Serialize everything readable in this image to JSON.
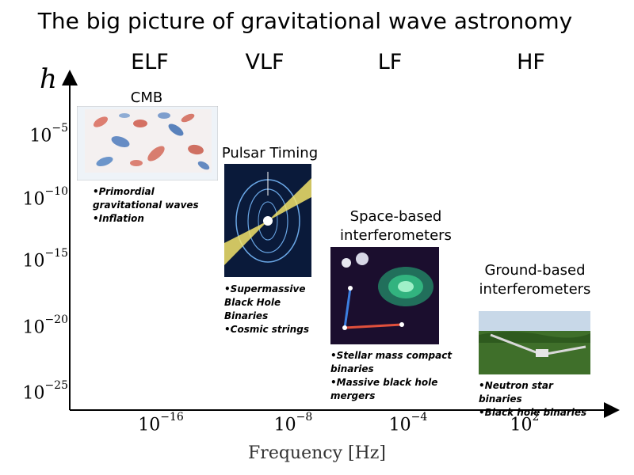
{
  "title": "The big picture of gravitational wave astronomy",
  "bands": [
    "ELF",
    "VLF",
    "LF",
    "HF"
  ],
  "y_axis": {
    "symbol": "h",
    "ticks": [
      {
        "base": "10",
        "exp": "−5"
      },
      {
        "base": "10",
        "exp": "−10"
      },
      {
        "base": "10",
        "exp": "−15"
      },
      {
        "base": "10",
        "exp": "−20"
      },
      {
        "base": "10",
        "exp": "−25"
      }
    ]
  },
  "x_axis": {
    "title": "Frequency [Hz]",
    "ticks": [
      {
        "base": "10",
        "exp": "−16"
      },
      {
        "base": "10",
        "exp": "−8"
      },
      {
        "base": "10",
        "exp": "−4"
      },
      {
        "base": "10",
        "exp": "2"
      }
    ]
  },
  "sources": [
    {
      "heading": "CMB",
      "bullets": [
        "Primordial gravitational waves",
        "Inflation"
      ]
    },
    {
      "heading": "Pulsar Timing",
      "bullets": [
        "Supermassive Black Hole Binaries",
        "Cosmic strings"
      ]
    },
    {
      "heading_lines": [
        "Space-based",
        "interferometers"
      ],
      "bullets": [
        "Stellar mass compact binaries",
        "Massive black hole mergers"
      ]
    },
    {
      "heading_lines": [
        "Ground-based",
        "interferometers"
      ],
      "bullets": [
        "Neutron star binaries",
        "Black hole binaries"
      ]
    }
  ],
  "icons": {
    "cmb_image": "cmb-polarization-map-icon",
    "pulsar_image": "pulsar-beam-icon",
    "space_image": "space-interferometer-icon",
    "ground_image": "ground-observatory-icon"
  }
}
